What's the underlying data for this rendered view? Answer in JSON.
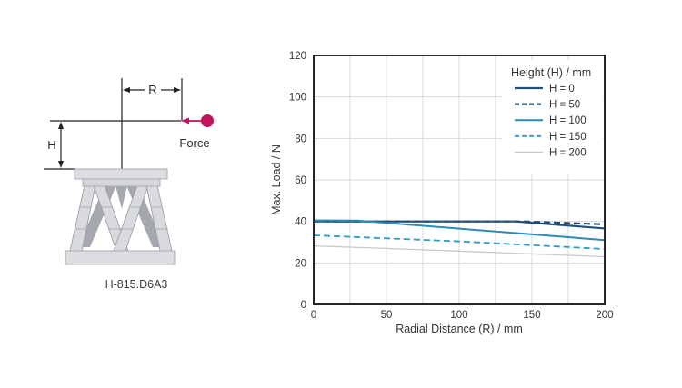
{
  "diagram": {
    "model": "H-815.D6A3",
    "radius_label": "R",
    "height_label": "H",
    "force_label": "Force",
    "accent_color": "#c2135c"
  },
  "chart_data": {
    "type": "line",
    "title": "",
    "xlabel": "Radial Distance (R) / mm",
    "ylabel": "Max. Load / N",
    "xlim": [
      0,
      200
    ],
    "ylim": [
      0,
      120
    ],
    "xticks": [
      0,
      50,
      100,
      150,
      200
    ],
    "yticks": [
      0,
      20,
      40,
      60,
      80,
      100,
      120
    ],
    "x_grid_step": 25,
    "grid": true,
    "grid_color": "#d9d9d9",
    "border_color": "#262626",
    "legend_position": "top-right-inside",
    "legend_title": "Height (H) / mm",
    "series": [
      {
        "name": "H = 0",
        "color": "#1f4e79",
        "dash": "solid",
        "width": 2.2,
        "points": [
          [
            0,
            40
          ],
          [
            139,
            40
          ],
          [
            200,
            36.6
          ]
        ]
      },
      {
        "name": "H = 50",
        "color": "#1f4e79",
        "dash": "dashed",
        "width": 2.2,
        "points": [
          [
            0,
            40
          ],
          [
            143,
            40
          ],
          [
            200,
            38.6
          ]
        ]
      },
      {
        "name": "H = 100",
        "color": "#2a8ab8",
        "dash": "solid",
        "width": 2.0,
        "points": [
          [
            0,
            40.5
          ],
          [
            30,
            40.4
          ],
          [
            200,
            31
          ]
        ]
      },
      {
        "name": "H = 150",
        "color": "#2e9bc4",
        "dash": "dashed",
        "width": 1.8,
        "points": [
          [
            0,
            33.3
          ],
          [
            100,
            30.4
          ],
          [
            200,
            26.7
          ]
        ]
      },
      {
        "name": "H = 200",
        "color": "#c3cad3",
        "dash": "solid",
        "width": 1.3,
        "points": [
          [
            0,
            28.2
          ],
          [
            100,
            25.7
          ],
          [
            200,
            23
          ]
        ]
      }
    ]
  }
}
